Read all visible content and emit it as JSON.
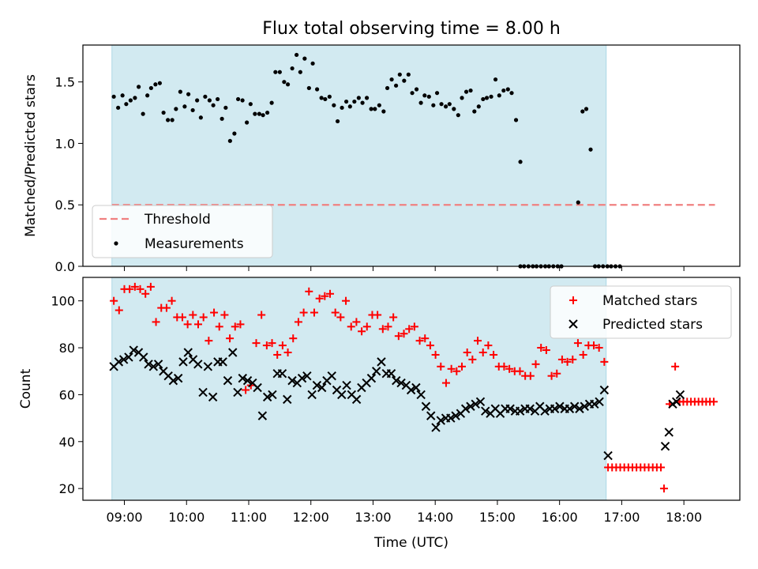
{
  "chart_data": [
    {
      "type": "scatter",
      "title": "Flux total observing time = 8.00 h",
      "ylabel": "Matched/Predicted stars",
      "xlim": [
        8.333,
        18.9
      ],
      "ylim": [
        0.0,
        1.8
      ],
      "yticks": [
        0.0,
        0.5,
        1.0,
        1.5
      ],
      "ytick_labels": [
        "0.0",
        "0.5",
        "1.0",
        "1.5"
      ],
      "shaded_span": [
        8.8,
        16.75
      ],
      "shaded_color": "#add8e6",
      "threshold": {
        "label": "Threshold",
        "y": 0.5,
        "x": [
          8.8,
          18.5
        ],
        "color": "#f08080"
      },
      "legend": {
        "loc": "lower left",
        "entries": [
          "Threshold",
          "Measurements"
        ]
      },
      "series": [
        {
          "name": "Measurements",
          "color": "#000000",
          "marker": "point",
          "points": [
            [
              8.83,
              1.38
            ],
            [
              8.9,
              1.29
            ],
            [
              8.97,
              1.39
            ],
            [
              9.03,
              1.32
            ],
            [
              9.1,
              1.35
            ],
            [
              9.17,
              1.37
            ],
            [
              9.23,
              1.46
            ],
            [
              9.3,
              1.24
            ],
            [
              9.37,
              1.39
            ],
            [
              9.43,
              1.45
            ],
            [
              9.5,
              1.48
            ],
            [
              9.57,
              1.49
            ],
            [
              9.63,
              1.25
            ],
            [
              9.7,
              1.19
            ],
            [
              9.77,
              1.19
            ],
            [
              9.83,
              1.28
            ],
            [
              9.9,
              1.42
            ],
            [
              9.97,
              1.3
            ],
            [
              10.03,
              1.4
            ],
            [
              10.1,
              1.27
            ],
            [
              10.17,
              1.35
            ],
            [
              10.23,
              1.21
            ],
            [
              10.3,
              1.38
            ],
            [
              10.37,
              1.35
            ],
            [
              10.43,
              1.31
            ],
            [
              10.5,
              1.36
            ],
            [
              10.57,
              1.2
            ],
            [
              10.63,
              1.29
            ],
            [
              10.7,
              1.02
            ],
            [
              10.77,
              1.08
            ],
            [
              10.83,
              1.36
            ],
            [
              10.9,
              1.35
            ],
            [
              10.97,
              1.17
            ],
            [
              11.03,
              1.32
            ],
            [
              11.1,
              1.24
            ],
            [
              11.17,
              1.24
            ],
            [
              11.23,
              1.23
            ],
            [
              11.3,
              1.25
            ],
            [
              11.37,
              1.33
            ],
            [
              11.43,
              1.58
            ],
            [
              11.5,
              1.58
            ],
            [
              11.57,
              1.5
            ],
            [
              11.63,
              1.48
            ],
            [
              11.7,
              1.61
            ],
            [
              11.77,
              1.72
            ],
            [
              11.83,
              1.58
            ],
            [
              11.9,
              1.69
            ],
            [
              11.97,
              1.45
            ],
            [
              12.03,
              1.65
            ],
            [
              12.1,
              1.44
            ],
            [
              12.17,
              1.37
            ],
            [
              12.23,
              1.36
            ],
            [
              12.3,
              1.38
            ],
            [
              12.37,
              1.31
            ],
            [
              12.43,
              1.18
            ],
            [
              12.5,
              1.29
            ],
            [
              12.57,
              1.34
            ],
            [
              12.63,
              1.3
            ],
            [
              12.7,
              1.34
            ],
            [
              12.77,
              1.37
            ],
            [
              12.83,
              1.33
            ],
            [
              12.9,
              1.37
            ],
            [
              12.97,
              1.28
            ],
            [
              13.03,
              1.28
            ],
            [
              13.1,
              1.31
            ],
            [
              13.17,
              1.26
            ],
            [
              13.23,
              1.45
            ],
            [
              13.3,
              1.52
            ],
            [
              13.37,
              1.47
            ],
            [
              13.43,
              1.56
            ],
            [
              13.5,
              1.51
            ],
            [
              13.57,
              1.56
            ],
            [
              13.63,
              1.41
            ],
            [
              13.7,
              1.44
            ],
            [
              13.77,
              1.33
            ],
            [
              13.83,
              1.39
            ],
            [
              13.9,
              1.38
            ],
            [
              13.97,
              1.31
            ],
            [
              14.03,
              1.41
            ],
            [
              14.1,
              1.32
            ],
            [
              14.17,
              1.3
            ],
            [
              14.23,
              1.32
            ],
            [
              14.3,
              1.28
            ],
            [
              14.37,
              1.23
            ],
            [
              14.43,
              1.37
            ],
            [
              14.5,
              1.42
            ],
            [
              14.57,
              1.43
            ],
            [
              14.63,
              1.26
            ],
            [
              14.7,
              1.3
            ],
            [
              14.77,
              1.36
            ],
            [
              14.83,
              1.37
            ],
            [
              14.9,
              1.38
            ],
            [
              14.97,
              1.52
            ],
            [
              15.03,
              1.39
            ],
            [
              15.1,
              1.43
            ],
            [
              15.17,
              1.44
            ],
            [
              15.23,
              1.41
            ],
            [
              15.3,
              1.19
            ],
            [
              15.37,
              0.85
            ],
            [
              15.37,
              0.0
            ],
            [
              15.43,
              0.0
            ],
            [
              15.5,
              0.0
            ],
            [
              15.57,
              0.0
            ],
            [
              15.63,
              0.0
            ],
            [
              15.7,
              0.0
            ],
            [
              15.77,
              0.0
            ],
            [
              15.83,
              0.0
            ],
            [
              15.9,
              0.0
            ],
            [
              15.97,
              0.0
            ],
            [
              16.03,
              0.0
            ],
            [
              16.3,
              0.52
            ],
            [
              16.37,
              1.26
            ],
            [
              16.43,
              1.28
            ],
            [
              16.5,
              0.95
            ],
            [
              16.57,
              0.0
            ],
            [
              16.63,
              0.0
            ],
            [
              16.7,
              0.0
            ],
            [
              16.77,
              0.0
            ],
            [
              16.83,
              0.0
            ],
            [
              16.9,
              0.0
            ],
            [
              16.97,
              0.0
            ]
          ]
        }
      ]
    },
    {
      "type": "scatter",
      "xlabel": "Time (UTC)",
      "ylabel": "Count",
      "xlim": [
        8.333,
        18.9
      ],
      "ylim": [
        15,
        110
      ],
      "xticks": [
        9,
        10,
        11,
        12,
        13,
        14,
        15,
        16,
        17,
        18
      ],
      "xtick_labels": [
        "09:00",
        "10:00",
        "11:00",
        "12:00",
        "13:00",
        "14:00",
        "15:00",
        "16:00",
        "17:00",
        "18:00"
      ],
      "yticks": [
        20,
        40,
        60,
        80,
        100
      ],
      "ytick_labels": [
        "20",
        "40",
        "60",
        "80",
        "100"
      ],
      "shaded_span": [
        8.8,
        16.75
      ],
      "shaded_color": "#add8e6",
      "legend": {
        "loc": "upper right",
        "entries": [
          "Matched stars",
          "Predicted stars"
        ]
      },
      "series": [
        {
          "name": "Matched stars",
          "color": "#ff0000",
          "marker": "plus",
          "values": [
            100,
            96,
            105,
            105,
            106,
            105,
            103,
            106,
            91,
            97,
            97,
            100,
            93,
            93,
            90,
            94,
            90,
            93,
            83,
            95,
            89,
            94,
            84,
            89,
            90,
            62,
            64,
            82,
            94,
            81,
            82,
            77,
            81,
            78,
            84,
            91,
            95,
            104,
            95,
            101,
            102,
            103,
            95,
            93,
            100,
            89,
            91,
            87,
            89,
            94,
            94,
            88,
            89,
            93,
            85,
            86,
            88,
            89,
            83,
            84,
            81,
            77,
            72,
            65,
            71,
            70,
            72,
            78,
            75,
            83,
            78,
            81,
            77,
            72,
            72,
            71,
            70,
            70,
            68,
            68,
            73,
            80,
            79,
            68,
            69,
            75,
            74,
            75,
            82,
            77,
            81,
            81,
            80,
            74,
            29,
            29,
            29,
            29,
            29,
            29,
            29,
            29,
            29,
            29,
            29,
            29,
            29,
            29,
            20,
            56,
            72,
            57,
            57,
            57,
            57,
            57,
            57,
            57,
            57,
            57,
            57
          ]
        },
        {
          "name": "Predicted stars",
          "color": "#000000",
          "marker": "x",
          "values": [
            72,
            74,
            75,
            76,
            79,
            78,
            76,
            73,
            72,
            73,
            70,
            68,
            66,
            67,
            74,
            78,
            75,
            73,
            61,
            72,
            59,
            74,
            74,
            66,
            78,
            61,
            67,
            66,
            65,
            63,
            51,
            59,
            60,
            69,
            69,
            58,
            66,
            65,
            67,
            68,
            60,
            64,
            63,
            66,
            68,
            62,
            60,
            64,
            60,
            58,
            63,
            65,
            67,
            70,
            74,
            69,
            69,
            66,
            65,
            64,
            62,
            63,
            60,
            55,
            51,
            46,
            49,
            50,
            50,
            51,
            52,
            54,
            55,
            56,
            57,
            53,
            52,
            54,
            52,
            54,
            54,
            53,
            53,
            54,
            54,
            53,
            55,
            53,
            54,
            54,
            55,
            54,
            54,
            55,
            54,
            55,
            56,
            56,
            57,
            62,
            34,
            38,
            44,
            56,
            57,
            60
          ]
        }
      ]
    }
  ]
}
